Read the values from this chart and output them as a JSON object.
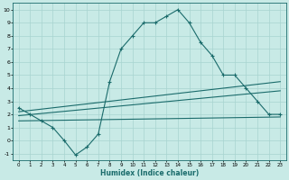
{
  "xlabel": "Humidex (Indice chaleur)",
  "xlim": [
    -0.5,
    23.5
  ],
  "ylim": [
    -1.5,
    10.5
  ],
  "yticks": [
    -1,
    0,
    1,
    2,
    3,
    4,
    5,
    6,
    7,
    8,
    9,
    10
  ],
  "xticks": [
    0,
    1,
    2,
    3,
    4,
    5,
    6,
    7,
    8,
    9,
    10,
    11,
    12,
    13,
    14,
    15,
    16,
    17,
    18,
    19,
    20,
    21,
    22,
    23
  ],
  "bg_color": "#c8eae6",
  "grid_color": "#a8d4d0",
  "line_color": "#1a6b6b",
  "curve1_x": [
    0,
    1,
    2,
    3,
    4,
    5,
    6,
    7,
    8,
    9,
    10,
    11,
    12,
    13,
    14,
    15,
    16,
    17,
    18,
    19,
    20,
    21,
    22,
    23
  ],
  "curve1_y": [
    2.5,
    2.0,
    1.5,
    1.0,
    0.0,
    -1.1,
    -0.5,
    0.5,
    4.5,
    7.0,
    8.0,
    9.0,
    9.0,
    9.5,
    10.0,
    9.0,
    7.5,
    6.5,
    5.0,
    5.0,
    4.0,
    3.0,
    2.0,
    2.0
  ],
  "curve2_x": [
    0,
    23
  ],
  "curve2_y": [
    2.2,
    4.5
  ],
  "curve3_x": [
    0,
    23
  ],
  "curve3_y": [
    1.9,
    3.8
  ],
  "curve4_x": [
    0,
    23
  ],
  "curve4_y": [
    1.5,
    1.8
  ]
}
